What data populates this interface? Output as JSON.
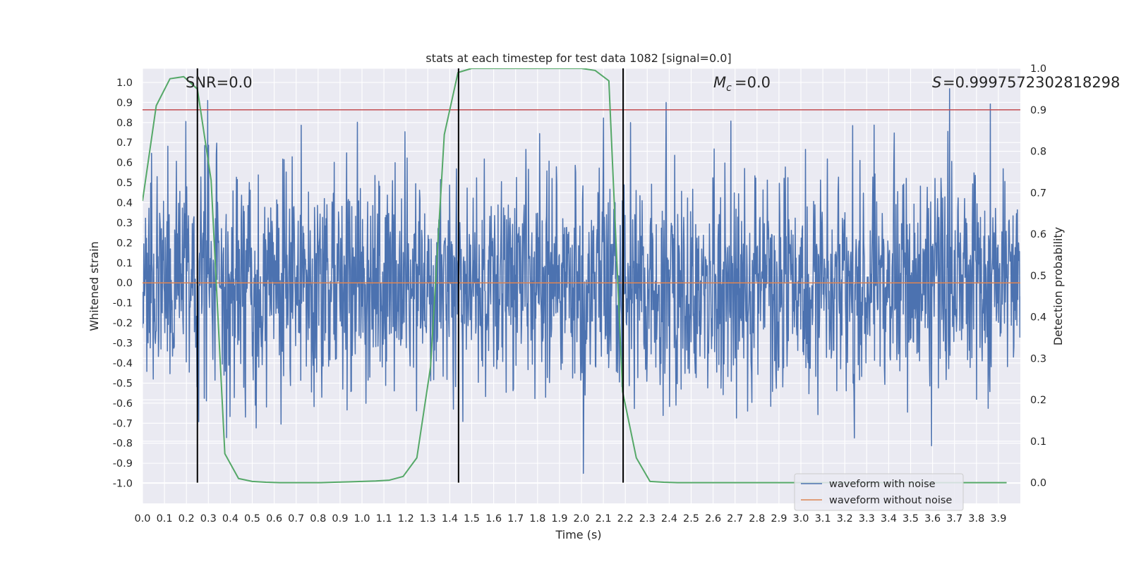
{
  "chart_data": {
    "type": "line",
    "title": "stats at each timestep for test data 1082 [signal=0.0]",
    "xlabel": "Time (s)",
    "ylabel": "Whitened strain",
    "y2label": "Detection probability",
    "xlim": [
      0.0,
      4.0
    ],
    "ylim": [
      -1.1,
      1.07
    ],
    "y2lim": [
      -0.05,
      1.0
    ],
    "x_ticks": [
      "0.0",
      "0.1",
      "0.2",
      "0.3",
      "0.4",
      "0.5",
      "0.6",
      "0.7",
      "0.8",
      "0.9",
      "1.0",
      "1.1",
      "1.2",
      "1.3",
      "1.4",
      "1.5",
      "1.6",
      "1.7",
      "1.8",
      "1.9",
      "2.0",
      "2.1",
      "2.2",
      "2.3",
      "2.4",
      "2.5",
      "2.6",
      "2.7",
      "2.8",
      "2.9",
      "3.0",
      "3.1",
      "3.2",
      "3.3",
      "3.4",
      "3.5",
      "3.6",
      "3.7",
      "3.8",
      "3.9"
    ],
    "y_ticks": [
      "1.0",
      "0.9",
      "0.8",
      "0.7",
      "0.6",
      "0.5",
      "0.4",
      "0.3",
      "0.2",
      "0.1",
      "0.0",
      "-0.1",
      "-0.2",
      "-0.3",
      "-0.4",
      "-0.5",
      "-0.6",
      "-0.7",
      "-0.8",
      "-0.9",
      "-1.0"
    ],
    "y2_ticks": [
      "1.0",
      "0.9",
      "0.8",
      "0.7",
      "0.6",
      "0.5",
      "0.4",
      "0.3",
      "0.2",
      "0.1",
      "0.0"
    ],
    "annotations": {
      "snr": "SNR=0.0",
      "mc": "=0.0",
      "s": "=0.9997572302818298"
    },
    "vertical_lines_x": [
      0.25,
      1.44,
      2.19
    ],
    "threshold_y2": 0.9,
    "noise_series": {
      "name": "waveform with noise",
      "color": "#4c72b0",
      "x_range": [
        0.0,
        4.0
      ],
      "n_samples": 2048,
      "approx_range": [
        -0.95,
        1.0
      ]
    },
    "clean_series": {
      "name": "waveform without noise",
      "color": "#dd8452",
      "value": 0.0
    },
    "probability_series": {
      "name": "detection probability",
      "color": "#55a868",
      "x": [
        0.0,
        0.0625,
        0.125,
        0.1875,
        0.25,
        0.3125,
        0.375,
        0.4375,
        0.5,
        0.5625,
        0.625,
        0.6875,
        0.75,
        0.8125,
        0.875,
        0.9375,
        1.0,
        1.0625,
        1.125,
        1.1875,
        1.25,
        1.3125,
        1.375,
        1.4375,
        1.5,
        1.5625,
        1.625,
        1.6875,
        1.75,
        1.8125,
        1.875,
        1.9375,
        2.0,
        2.0625,
        2.125,
        2.1875,
        2.25,
        2.3125,
        2.375,
        2.4375,
        2.5,
        2.5625,
        2.625,
        2.6875,
        2.75,
        2.8125,
        2.875,
        2.9375,
        3.0,
        3.0625,
        3.125,
        3.1875,
        3.25,
        3.3125,
        3.375,
        3.4375,
        3.5,
        3.5625,
        3.625,
        3.6875,
        3.75,
        3.8125,
        3.875,
        3.9375
      ],
      "y": [
        0.68,
        0.91,
        0.975,
        0.98,
        0.95,
        0.73,
        0.07,
        0.01,
        0.003,
        0.001,
        0.0,
        0.0,
        0.0,
        0.0,
        0.001,
        0.002,
        0.003,
        0.004,
        0.006,
        0.015,
        0.06,
        0.28,
        0.84,
        0.99,
        1.0,
        1.0,
        1.0,
        1.0,
        1.0,
        1.0,
        1.0,
        1.0,
        1.0,
        0.995,
        0.97,
        0.22,
        0.06,
        0.003,
        0.001,
        0.0,
        0.0,
        0.0,
        0.0,
        0.0,
        0.0,
        0.0,
        0.0,
        0.0,
        0.0,
        0.0,
        0.0,
        0.0,
        0.0,
        0.0,
        0.0,
        0.0,
        0.0,
        0.0,
        0.0,
        0.0,
        0.0,
        0.0,
        0.0,
        0.0
      ]
    },
    "legend": {
      "placement": "lower-right",
      "entries": [
        {
          "label": "waveform with noise",
          "color": "#4c72b0"
        },
        {
          "label": "waveform without noise",
          "color": "#dd8452"
        }
      ]
    },
    "grid": true
  }
}
